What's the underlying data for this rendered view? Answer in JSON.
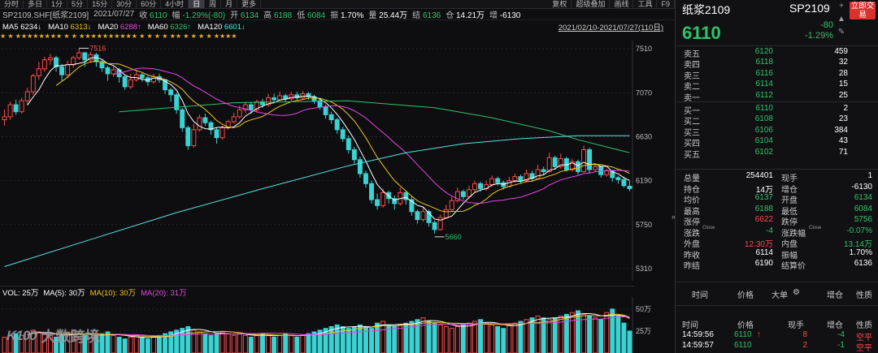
{
  "toolbar": {
    "items": [
      "分时",
      "多日",
      "1分",
      "5分",
      "15分",
      "30分",
      "60分",
      "4小时",
      "日",
      "周",
      "月",
      "更多"
    ],
    "active_index": 8,
    "right_items": [
      "复权",
      "超级叠加",
      "画线",
      "工具",
      "F9"
    ]
  },
  "info": {
    "symbol": "SP2109.SHF[纸浆2109]",
    "date": "2021/07/27",
    "close_label": "收",
    "close": "6110",
    "change_label": "幅",
    "change": "-1.29%(-80)",
    "open_label": "开",
    "open": "6134",
    "high_label": "高",
    "high": "6188",
    "low_label": "低",
    "low": "6084",
    "amp_label": "振",
    "amp": "1.70%",
    "vol_label": "量",
    "vol": "25.44万",
    "settle_label": "结",
    "settle": "6136",
    "oi_label": "仓",
    "oi": "14.21万",
    "oi_chg_label": "增",
    "oi_chg": "-6130"
  },
  "ma": {
    "ma5_label": "MA5",
    "ma5": "6234↓",
    "ma10_label": "MA10",
    "ma10": "6313↓",
    "ma20_label": "MA20",
    "ma20": "6288↑",
    "ma60_label": "MA60",
    "ma60": "6326↑",
    "ma120_label": "MA120",
    "ma120": "6601↓",
    "range": "2021/02/10-2021/07/27(110日)"
  },
  "colors": {
    "up": "#ff4a4a",
    "down": "#3ad2d2",
    "ma5": "#ffffff",
    "ma10": "#f0c419",
    "ma20": "#e545e5",
    "ma60": "#2ec36a",
    "ma120": "#57e3e3"
  },
  "chart_data": {
    "type": "candlestick",
    "y_ticks": [
      "7510",
      "7070",
      "6630",
      "6190",
      "5750",
      "5310"
    ],
    "y_tick_values": [
      7510,
      7070,
      6630,
      6190,
      5750,
      5310
    ],
    "ylim": [
      5220,
      7560
    ],
    "high_annotation": "7516",
    "low_annotation": "5660",
    "candles": [
      [
        6800,
        6830,
        6900,
        6740
      ],
      [
        6830,
        6950,
        6980,
        6800
      ],
      [
        6950,
        6880,
        7000,
        6850
      ],
      [
        6880,
        6990,
        7020,
        6860
      ],
      [
        6990,
        7080,
        7120,
        6950
      ],
      [
        7080,
        7240,
        7260,
        7050
      ],
      [
        7240,
        7310,
        7380,
        7200
      ],
      [
        7310,
        7400,
        7430,
        7280
      ],
      [
        7400,
        7420,
        7460,
        7350
      ],
      [
        7420,
        7330,
        7440,
        7280
      ],
      [
        7330,
        7250,
        7360,
        7190
      ],
      [
        7250,
        7350,
        7390,
        7220
      ],
      [
        7350,
        7420,
        7440,
        7320
      ],
      [
        7420,
        7470,
        7516,
        7400
      ],
      [
        7470,
        7400,
        7480,
        7330
      ],
      [
        7400,
        7450,
        7480,
        7370
      ],
      [
        7450,
        7380,
        7470,
        7330
      ],
      [
        7380,
        7320,
        7400,
        7280
      ],
      [
        7320,
        7260,
        7340,
        7190
      ],
      [
        7260,
        7300,
        7330,
        7230
      ],
      [
        7300,
        7230,
        7320,
        7170
      ],
      [
        7230,
        7130,
        7250,
        7100
      ],
      [
        7130,
        7200,
        7260,
        7110
      ],
      [
        7200,
        7250,
        7290,
        7180
      ],
      [
        7250,
        7220,
        7270,
        7180
      ],
      [
        7220,
        7180,
        7240,
        7140
      ],
      [
        7180,
        7230,
        7260,
        7160
      ],
      [
        7230,
        7200,
        7260,
        7170
      ],
      [
        7200,
        7100,
        7210,
        7060
      ],
      [
        7100,
        7050,
        7120,
        6980
      ],
      [
        7050,
        6900,
        7070,
        6860
      ],
      [
        6900,
        6720,
        6920,
        6680
      ],
      [
        6720,
        6540,
        6740,
        6500
      ],
      [
        6540,
        6700,
        6760,
        6520
      ],
      [
        6700,
        6820,
        6850,
        6680
      ],
      [
        6820,
        6770,
        6860,
        6740
      ],
      [
        6770,
        6700,
        6790,
        6650
      ],
      [
        6700,
        6620,
        6720,
        6560
      ],
      [
        6620,
        6720,
        6740,
        6600
      ],
      [
        6720,
        6780,
        6800,
        6700
      ],
      [
        6780,
        6830,
        6870,
        6760
      ],
      [
        6830,
        6900,
        6940,
        6810
      ],
      [
        6900,
        6950,
        6980,
        6870
      ],
      [
        6950,
        6900,
        6980,
        6860
      ],
      [
        6900,
        6980,
        7000,
        6870
      ],
      [
        6980,
        6950,
        7010,
        6920
      ],
      [
        6950,
        7020,
        7060,
        6930
      ],
      [
        7020,
        7000,
        7060,
        6980
      ],
      [
        7000,
        7040,
        7080,
        6990
      ],
      [
        7040,
        7010,
        7060,
        6980
      ],
      [
        7010,
        7050,
        7080,
        6990
      ],
      [
        7050,
        7020,
        7080,
        7000
      ],
      [
        7020,
        7060,
        7090,
        7000
      ],
      [
        7060,
        7030,
        7080,
        7000
      ],
      [
        7030,
        6990,
        7050,
        6960
      ],
      [
        6990,
        6930,
        7010,
        6900
      ],
      [
        6930,
        6850,
        6950,
        6810
      ],
      [
        6850,
        6800,
        6880,
        6760
      ],
      [
        6800,
        6700,
        6820,
        6660
      ],
      [
        6700,
        6610,
        6730,
        6580
      ],
      [
        6610,
        6500,
        6640,
        6460
      ],
      [
        6500,
        6400,
        6530,
        6360
      ],
      [
        6400,
        6260,
        6430,
        6220
      ],
      [
        6260,
        6160,
        6290,
        6120
      ],
      [
        6160,
        6000,
        6190,
        5960
      ],
      [
        6000,
        5940,
        6060,
        5900
      ],
      [
        5940,
        6070,
        6110,
        5920
      ],
      [
        6070,
        6010,
        6090,
        5960
      ],
      [
        6010,
        5960,
        6040,
        5900
      ],
      [
        5960,
        6070,
        6120,
        5940
      ],
      [
        6070,
        6000,
        6090,
        5950
      ],
      [
        6000,
        5880,
        6030,
        5840
      ],
      [
        5880,
        5800,
        5900,
        5760
      ],
      [
        5800,
        5880,
        5930,
        5780
      ],
      [
        5880,
        5770,
        5900,
        5730
      ],
      [
        5770,
        5700,
        5790,
        5660
      ],
      [
        5700,
        5820,
        5850,
        5690
      ],
      [
        5820,
        5900,
        5950,
        5810
      ],
      [
        5900,
        5990,
        6030,
        5880
      ],
      [
        5990,
        6080,
        6120,
        5970
      ],
      [
        6080,
        6030,
        6100,
        6000
      ],
      [
        6030,
        6100,
        6140,
        6010
      ],
      [
        6100,
        6160,
        6190,
        6080
      ],
      [
        6160,
        6110,
        6180,
        6080
      ],
      [
        6110,
        6150,
        6190,
        6090
      ],
      [
        6150,
        6210,
        6240,
        6130
      ],
      [
        6210,
        6170,
        6230,
        6140
      ],
      [
        6170,
        6130,
        6190,
        6100
      ],
      [
        6130,
        6190,
        6230,
        6120
      ],
      [
        6190,
        6230,
        6260,
        6170
      ],
      [
        6230,
        6190,
        6250,
        6160
      ],
      [
        6190,
        6260,
        6300,
        6170
      ],
      [
        6260,
        6210,
        6290,
        6180
      ],
      [
        6210,
        6300,
        6350,
        6200
      ],
      [
        6300,
        6280,
        6330,
        6250
      ],
      [
        6280,
        6420,
        6470,
        6270
      ],
      [
        6420,
        6330,
        6440,
        6300
      ],
      [
        6330,
        6410,
        6460,
        6310
      ],
      [
        6410,
        6300,
        6430,
        6280
      ],
      [
        6300,
        6380,
        6410,
        6280
      ],
      [
        6380,
        6280,
        6400,
        6250
      ],
      [
        6280,
        6500,
        6540,
        6270
      ],
      [
        6500,
        6300,
        6520,
        6260
      ],
      [
        6300,
        6330,
        6360,
        6280
      ],
      [
        6330,
        6250,
        6340,
        6220
      ],
      [
        6250,
        6290,
        6310,
        6230
      ],
      [
        6290,
        6220,
        6300,
        6180
      ],
      [
        6220,
        6200,
        6240,
        6160
      ],
      [
        6200,
        6140,
        6230,
        6120
      ],
      [
        6134,
        6110,
        6188,
        6084
      ]
    ],
    "ma60_points": [
      [
        20,
        6880
      ],
      [
        40,
        6970
      ],
      [
        60,
        6990
      ],
      [
        75,
        6920
      ],
      [
        85,
        6820
      ],
      [
        95,
        6690
      ],
      [
        100,
        6600
      ],
      [
        109,
        6470
      ]
    ],
    "ma120_points": [
      [
        0,
        5330
      ],
      [
        15,
        5600
      ],
      [
        30,
        5870
      ],
      [
        45,
        6110
      ],
      [
        60,
        6340
      ],
      [
        70,
        6470
      ],
      [
        80,
        6560
      ],
      [
        90,
        6610
      ],
      [
        100,
        6640
      ],
      [
        109,
        6640
      ]
    ],
    "star_marks": "★ ★ ★★★★★★★★ ★ ★ ★★★★★★★★★★ ★ ★ ★ ★ ★★ ★ ★ ★ ★ ★★★★"
  },
  "volume": {
    "vol_label": "VOL: 25万",
    "ma5": "MA(5): 30万",
    "ma10": "MA(10): 30万",
    "ma20": "MA(20): 31万",
    "y_ticks": [
      "50万",
      "25万"
    ],
    "y_tick_values": [
      50,
      25
    ],
    "values": [
      18,
      20,
      22,
      20,
      24,
      26,
      24,
      22,
      20,
      18,
      20,
      22,
      24,
      22,
      20,
      18,
      20,
      22,
      24,
      20,
      18,
      16,
      18,
      20,
      18,
      16,
      18,
      20,
      22,
      24,
      26,
      28,
      30,
      26,
      24,
      22,
      20,
      22,
      24,
      22,
      20,
      22,
      20,
      18,
      20,
      22,
      20,
      18,
      20,
      22,
      20,
      18,
      20,
      22,
      24,
      26,
      28,
      30,
      32,
      30,
      28,
      30,
      32,
      30,
      28,
      34,
      36,
      32,
      30,
      32,
      34,
      36,
      38,
      40,
      36,
      34,
      32,
      30,
      28,
      30,
      32,
      34,
      36,
      38,
      34,
      32,
      30,
      28,
      32,
      34,
      36,
      38,
      40,
      42,
      40,
      38,
      40,
      42,
      44,
      46,
      48,
      44,
      42,
      40,
      38,
      46,
      50,
      42,
      34,
      25
    ]
  },
  "watermark": {
    "logo": "K100",
    "text": "大数跨境"
  },
  "rpanel": {
    "name": "纸浆2109",
    "code": "SP2109",
    "price": "6110",
    "chg": "-80",
    "chg_pct": "-1.29%",
    "trade_btn": "立即交易",
    "asks": [
      {
        "label": "卖五",
        "price": "6120",
        "vol": "459"
      },
      {
        "label": "卖四",
        "price": "6118",
        "vol": "32"
      },
      {
        "label": "卖三",
        "price": "6116",
        "vol": "28"
      },
      {
        "label": "卖二",
        "price": "6114",
        "vol": "15"
      },
      {
        "label": "卖一",
        "price": "6112",
        "vol": "25"
      }
    ],
    "bids": [
      {
        "label": "买一",
        "price": "6110",
        "vol": "2"
      },
      {
        "label": "买二",
        "price": "6108",
        "vol": "23"
      },
      {
        "label": "买三",
        "price": "6106",
        "vol": "384"
      },
      {
        "label": "买四",
        "price": "6104",
        "vol": "43"
      },
      {
        "label": "买五",
        "price": "6102",
        "vol": "71"
      }
    ],
    "stats": [
      {
        "l1": "总量",
        "v1": "254401",
        "l2": "现手",
        "v2": "1",
        "c1": "white",
        "c2": "white"
      },
      {
        "l1": "持仓",
        "v1": "14万",
        "l2": "增仓",
        "v2": "-6130",
        "c1": "white",
        "c2": "white"
      },
      {
        "l1": "均价",
        "v1": "6137",
        "l2": "开盘",
        "v2": "6134",
        "c1": "green",
        "c2": "green"
      },
      {
        "l1": "最高",
        "v1": "6188",
        "l2": "最低",
        "v2": "6084",
        "c1": "green",
        "c2": "green"
      },
      {
        "l1": "涨停",
        "v1": "6622",
        "l2": "跌停",
        "v2": "5756",
        "c1": "red",
        "c2": "green"
      },
      {
        "l1": "涨跌",
        "l1s": "Close",
        "v1": "-4",
        "l2": "涨跌幅",
        "l2s": "Close",
        "v2": "-0.07%",
        "c1": "green",
        "c2": "green"
      },
      {
        "l1": "外盘",
        "v1": "12.30万",
        "l2": "内盘",
        "v2": "13.14万",
        "c1": "red",
        "c2": "green"
      },
      {
        "l1": "昨收",
        "v1": "6114",
        "l2": "振幅",
        "v2": "1.70%",
        "c1": "white",
        "c2": "white"
      },
      {
        "l1": "昨结",
        "v1": "6190",
        "l2": "结算价",
        "v2": "6136",
        "c1": "white",
        "c2": "white"
      }
    ],
    "ticks_header1": {
      "time": "时间",
      "price": "价格",
      "big": "大单",
      "oi": "增仓",
      "type": "性质"
    },
    "ticks_header2": {
      "time": "时间",
      "price": "价格",
      "hand": "现手",
      "oi": "增仓",
      "type": "性质"
    },
    "ticks": [
      {
        "time": "14:59:56",
        "price": "6110",
        "arrow": "↑",
        "hand": "8",
        "oi": "-4",
        "type": "空平"
      },
      {
        "time": "14:59:57",
        "price": "6110",
        "arrow": "",
        "hand": "2",
        "oi": "-1",
        "type": "空平"
      }
    ]
  }
}
